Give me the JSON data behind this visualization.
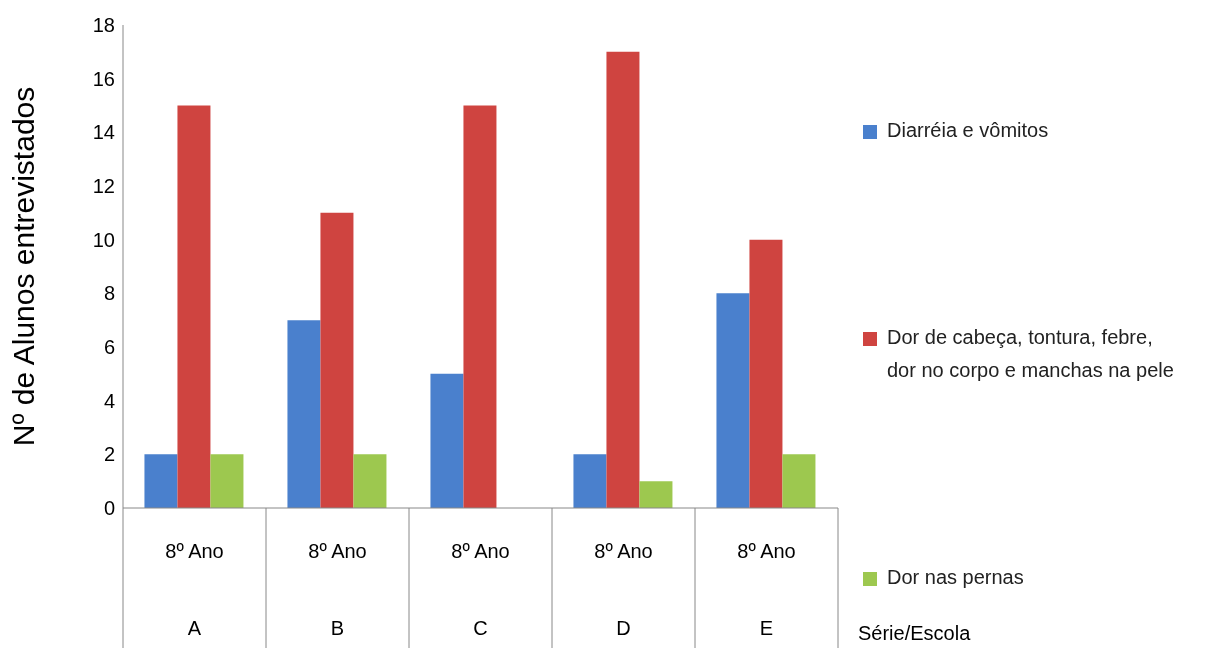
{
  "chart_data": {
    "type": "bar",
    "ylabel": "Nº de Alunos entrevistados",
    "annotations": [
      "Série/Escola"
    ],
    "categories": [
      "8º Ano\nA",
      "8º Ano\nB",
      "8º Ano\nC",
      "8º Ano\nD",
      "8º Ano\nE"
    ],
    "series": [
      {
        "name": "Diarréia e vômitos",
        "color": "#4a80cd",
        "values": [
          2,
          7,
          5,
          2,
          8
        ]
      },
      {
        "name": "Dor de cabeça, tontura, febre, dor no corpo e manchas na pele",
        "color": "#cf4440",
        "values": [
          15,
          11,
          15,
          17,
          10
        ]
      },
      {
        "name": "Dor nas pernas",
        "color": "#9dc84f",
        "values": [
          2,
          2,
          0,
          1,
          2
        ]
      }
    ],
    "ylim": [
      0,
      18
    ],
    "yticks": [
      0,
      2,
      4,
      6,
      8,
      10,
      12,
      14,
      16,
      18
    ],
    "legend": "right"
  }
}
